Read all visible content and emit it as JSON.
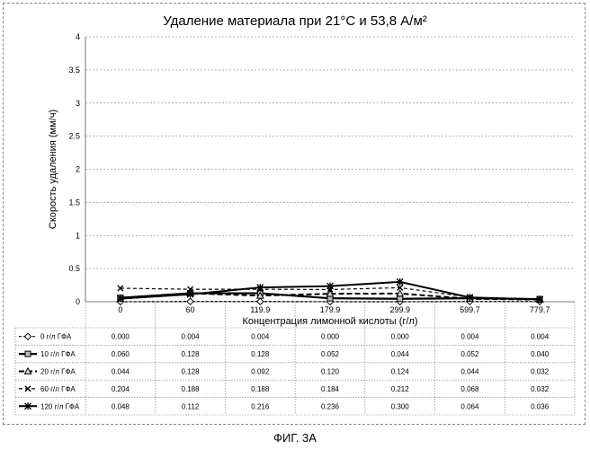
{
  "caption": "ФИГ. 3А",
  "chart_data": {
    "type": "line",
    "title": "Удаление материала при 21°C и 53,8 А/м²",
    "xlabel": "Концентрация лимонной кислоты (г/л)",
    "ylabel": "Скорость удаления (мм/ч)",
    "categories": [
      "0",
      "60",
      "119.9",
      "179.9",
      "299.9",
      "599.7",
      "779.7"
    ],
    "ylim": [
      0,
      4
    ],
    "yticks": [
      "0",
      "0.5",
      "1",
      "1.5",
      "2",
      "2.5",
      "3",
      "3.5",
      "4"
    ],
    "grid": "horizontal dashed",
    "legend_placement": "data-table",
    "series": [
      {
        "name": "0 г/л ГФА",
        "values": [
          0.0,
          0.004,
          0.004,
          0.0,
          0.0,
          0.004,
          0.004
        ],
        "labels": [
          "0.000",
          "0.004",
          "0.004",
          "0.000",
          "0.000",
          "0.004",
          "0.004"
        ],
        "color": "#000000",
        "dash": "3,2",
        "marker": "diamond",
        "width": 1.2
      },
      {
        "name": "10 г/л ГФА",
        "values": [
          0.06,
          0.128,
          0.128,
          0.052,
          0.044,
          0.052,
          0.04
        ],
        "labels": [
          "0.060",
          "0.128",
          "0.128",
          "0.052",
          "0.044",
          "0.052",
          "0.040"
        ],
        "color": "#000000",
        "dash": "",
        "marker": "square",
        "width": 2.2
      },
      {
        "name": "20 г/л ГФА",
        "values": [
          0.044,
          0.128,
          0.092,
          0.12,
          0.124,
          0.044,
          0.032
        ],
        "labels": [
          "0.044",
          "0.128",
          "0.092",
          "0.120",
          "0.124",
          "0.044",
          "0.032"
        ],
        "color": "#000000",
        "dash": "6,3",
        "marker": "triangle",
        "width": 2
      },
      {
        "name": "60 г/л ГФА",
        "values": [
          0.204,
          0.188,
          0.188,
          0.184,
          0.212,
          0.068,
          0.032
        ],
        "labels": [
          "0.204",
          "0.188",
          "0.188",
          "0.184",
          "0.212",
          "0.068",
          "0.032"
        ],
        "color": "#000000",
        "dash": "4,3",
        "marker": "x",
        "width": 1.2
      },
      {
        "name": "120 г/л ГФА",
        "values": [
          0.048,
          0.112,
          0.216,
          0.236,
          0.3,
          0.064,
          0.036
        ],
        "labels": [
          "0.048",
          "0.112",
          "0.216",
          "0.236",
          "0.300",
          "0.064",
          "0.036"
        ],
        "color": "#000000",
        "dash": "",
        "marker": "asterisk",
        "width": 2
      }
    ]
  }
}
